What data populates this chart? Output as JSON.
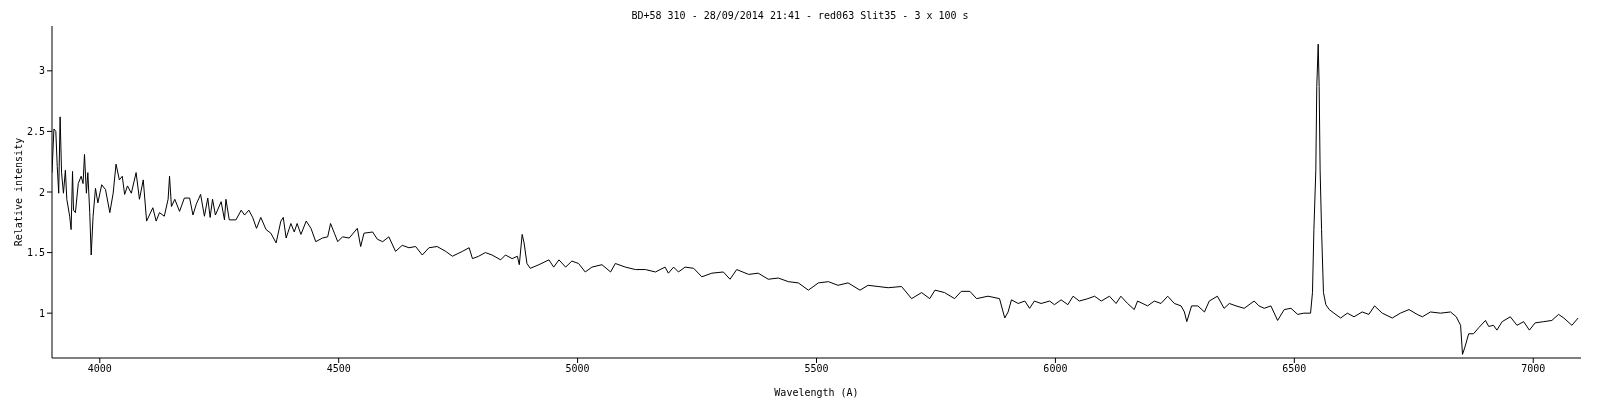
{
  "chart_data": {
    "type": "line",
    "title": "BD+58 310 - 28/09/2014 21:41 - red063 Slit35 - 3 x 100 s",
    "xlabel": "Wavelength (A)",
    "ylabel": "Relative intensity",
    "color": "#000000",
    "x": [
      3900,
      3904,
      3908,
      3911,
      3914,
      3917,
      3920,
      3924,
      3928,
      3931,
      3937,
      3940,
      3943,
      3945,
      3949,
      3955,
      3961,
      3965,
      3968,
      3972,
      3975,
      3979,
      3982,
      3986,
      3991,
      3996,
      4004,
      4012,
      4021,
      4028,
      4034,
      4041,
      4047,
      4052,
      4058,
      4066,
      4076,
      4083,
      4091,
      4098,
      4111,
      4118,
      4125,
      4135,
      4143,
      4146,
      4150,
      4157,
      4167,
      4177,
      4188,
      4195,
      4202,
      4211,
      4219,
      4226,
      4231,
      4236,
      4242,
      4254,
      4261,
      4264,
      4271,
      4285,
      4296,
      4303,
      4312,
      4320,
      4328,
      4337,
      4348,
      4358,
      4369,
      4379,
      4384,
      4390,
      4400,
      4407,
      4413,
      4421,
      4432,
      4442,
      4452,
      4466,
      4477,
      4483,
      4491,
      4498,
      4508,
      4522,
      4539,
      4546,
      4553,
      4571,
      4581,
      4592,
      4605,
      4619,
      4633,
      4647,
      4661,
      4675,
      4689,
      4706,
      4724,
      4738,
      4759,
      4773,
      4780,
      4793,
      4807,
      4821,
      4839,
      4849,
      4863,
      4874,
      4878,
      4884,
      4888,
      4894,
      4901,
      4919,
      4940,
      4950,
      4961,
      4975,
      4988,
      5002,
      5016,
      5030,
      5051,
      5069,
      5079,
      5100,
      5121,
      5142,
      5163,
      5183,
      5190,
      5201,
      5211,
      5225,
      5243,
      5260,
      5281,
      5305,
      5319,
      5333,
      5358,
      5378,
      5399,
      5420,
      5441,
      5462,
      5483,
      5504,
      5525,
      5545,
      5566,
      5591,
      5608,
      5629,
      5650,
      5678,
      5699,
      5720,
      5737,
      5748,
      5768,
      5789,
      5803,
      5821,
      5835,
      5859,
      5883,
      5894,
      5901,
      5908,
      5922,
      5936,
      5946,
      5956,
      5970,
      5988,
      5998,
      6012,
      6026,
      6037,
      6050,
      6068,
      6082,
      6096,
      6113,
      6127,
      6137,
      6151,
      6165,
      6172,
      6193,
      6207,
      6221,
      6235,
      6249,
      6263,
      6270,
      6275,
      6285,
      6298,
      6312,
      6322,
      6339,
      6353,
      6364,
      6378,
      6395,
      6416,
      6426,
      6437,
      6451,
      6465,
      6479,
      6493,
      6507,
      6520,
      6534,
      6538,
      6541,
      6545,
      6547,
      6550,
      6552,
      6554,
      6557,
      6561,
      6566,
      6573,
      6583,
      6597,
      6611,
      6625,
      6642,
      6656,
      6668,
      6684,
      6705,
      6722,
      6740,
      6757,
      6768,
      6785,
      6806,
      6827,
      6839,
      6848,
      6852,
      6857,
      6865,
      6875,
      6886,
      6900,
      6907,
      6917,
      6924,
      6935,
      6952,
      6966,
      6980,
      6992,
      7004,
      7022,
      7039,
      7053,
      7064,
      7081,
      7094
    ],
    "values": [
      2.16,
      2.52,
      2.5,
      2.21,
      1.99,
      2.62,
      2.16,
      1.99,
      2.18,
      1.94,
      1.8,
      1.69,
      2.17,
      1.85,
      1.83,
      2.07,
      2.13,
      2.07,
      2.31,
      1.99,
      2.16,
      1.83,
      1.48,
      1.8,
      2.03,
      1.91,
      2.06,
      2.02,
      1.83,
      1.99,
      2.23,
      2.1,
      2.13,
      1.98,
      2.05,
      1.99,
      2.16,
      1.94,
      2.1,
      1.76,
      1.87,
      1.76,
      1.83,
      1.8,
      1.94,
      2.13,
      1.88,
      1.94,
      1.84,
      1.95,
      1.95,
      1.81,
      1.9,
      1.98,
      1.8,
      1.95,
      1.79,
      1.94,
      1.81,
      1.92,
      1.77,
      1.94,
      1.77,
      1.77,
      1.85,
      1.81,
      1.85,
      1.79,
      1.7,
      1.79,
      1.69,
      1.66,
      1.58,
      1.76,
      1.79,
      1.62,
      1.74,
      1.67,
      1.74,
      1.65,
      1.76,
      1.7,
      1.59,
      1.62,
      1.63,
      1.74,
      1.66,
      1.59,
      1.63,
      1.62,
      1.7,
      1.55,
      1.66,
      1.67,
      1.61,
      1.59,
      1.63,
      1.51,
      1.56,
      1.54,
      1.55,
      1.48,
      1.54,
      1.55,
      1.51,
      1.47,
      1.51,
      1.54,
      1.45,
      1.47,
      1.5,
      1.48,
      1.44,
      1.48,
      1.45,
      1.47,
      1.4,
      1.65,
      1.58,
      1.41,
      1.37,
      1.4,
      1.44,
      1.38,
      1.44,
      1.38,
      1.43,
      1.41,
      1.34,
      1.38,
      1.4,
      1.34,
      1.41,
      1.38,
      1.36,
      1.36,
      1.34,
      1.38,
      1.33,
      1.38,
      1.34,
      1.38,
      1.37,
      1.3,
      1.33,
      1.34,
      1.28,
      1.36,
      1.32,
      1.33,
      1.28,
      1.29,
      1.26,
      1.25,
      1.19,
      1.25,
      1.26,
      1.23,
      1.25,
      1.19,
      1.23,
      1.22,
      1.21,
      1.22,
      1.12,
      1.17,
      1.12,
      1.19,
      1.17,
      1.12,
      1.18,
      1.18,
      1.12,
      1.14,
      1.12,
      0.96,
      1.01,
      1.11,
      1.08,
      1.1,
      1.04,
      1.1,
      1.08,
      1.1,
      1.07,
      1.11,
      1.07,
      1.14,
      1.1,
      1.12,
      1.14,
      1.1,
      1.14,
      1.08,
      1.14,
      1.08,
      1.03,
      1.1,
      1.06,
      1.1,
      1.08,
      1.14,
      1.08,
      1.06,
      1.01,
      0.93,
      1.06,
      1.06,
      1.01,
      1.1,
      1.14,
      1.04,
      1.08,
      1.06,
      1.04,
      1.1,
      1.06,
      1.04,
      1.06,
      0.94,
      1.03,
      1.04,
      0.99,
      1,
      1,
      1.17,
      1.69,
      2.18,
      2.87,
      3.22,
      2.87,
      2.18,
      1.69,
      1.17,
      1.07,
      1.03,
      1,
      0.96,
      1,
      0.97,
      1.01,
      0.99,
      1.06,
      1,
      0.96,
      1,
      1.03,
      0.99,
      0.97,
      1.01,
      1,
      1.01,
      0.97,
      0.9,
      0.66,
      0.72,
      0.83,
      0.83,
      0.88,
      0.94,
      0.89,
      0.9,
      0.86,
      0.93,
      0.97,
      0.9,
      0.93,
      0.86,
      0.92,
      0.93,
      0.94,
      0.99,
      0.96,
      0.9,
      0.96
    ],
    "xlim": [
      3900,
      7100
    ],
    "ylim": [
      0.63,
      3.37
    ],
    "xticks": [
      4000,
      4500,
      5000,
      5500,
      6000,
      6500,
      7000
    ],
    "yticks": [
      1,
      1.5,
      2,
      2.5,
      3
    ],
    "marker": "none",
    "line_style": "solid"
  }
}
